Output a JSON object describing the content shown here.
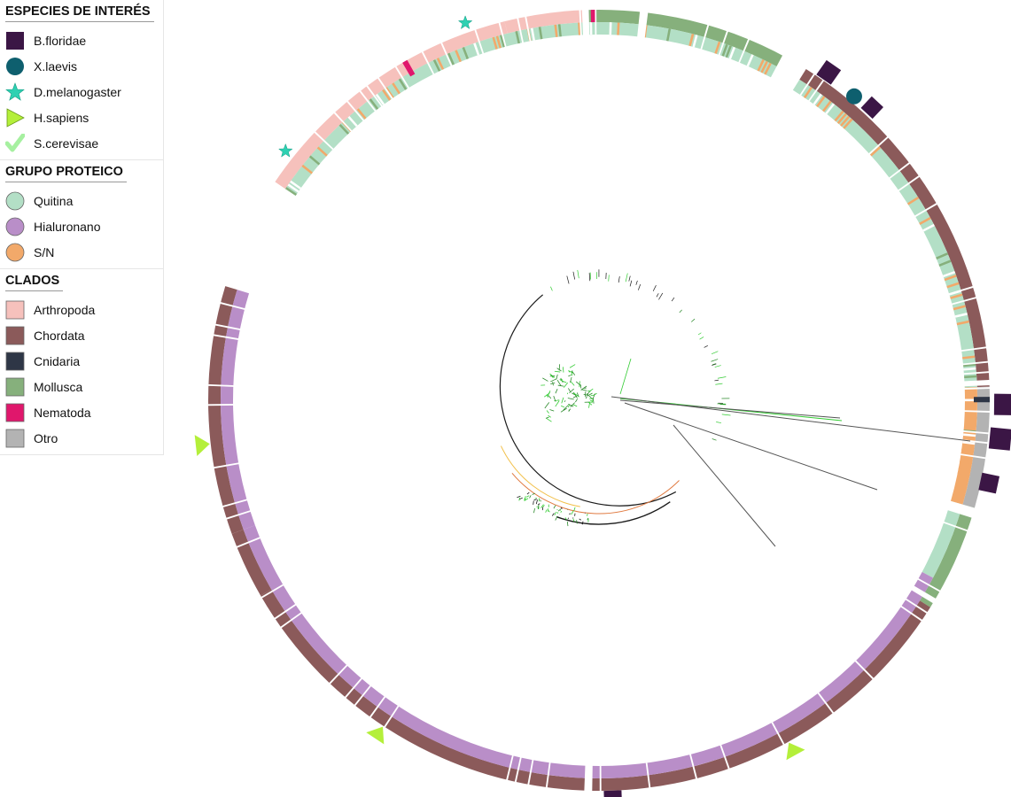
{
  "legend": {
    "species": {
      "title": "ESPECIES DE INTERÉS",
      "items": [
        {
          "label": "B.floridae",
          "icon": "square-marker-icon",
          "color": "#3b1645"
        },
        {
          "label": "X.laevis",
          "icon": "circle-marker-icon",
          "color": "#0e5f6e"
        },
        {
          "label": "D.melanogaster",
          "icon": "star-marker-icon",
          "color": "#2ed1b2"
        },
        {
          "label": "H.sapiens",
          "icon": "triangle-marker-icon",
          "color": "#b4ef3a"
        },
        {
          "label": "S.cerevisae",
          "icon": "check-marker-icon",
          "color": "#a6f0a0"
        }
      ]
    },
    "protein_group": {
      "title": "GRUPO PROTEICO",
      "items": [
        {
          "label": "Quitina",
          "color": "#b3dfc6"
        },
        {
          "label": "Hialuronano",
          "color": "#b98ec8"
        },
        {
          "label": "S/N",
          "color": "#f2a96a"
        }
      ]
    },
    "clades": {
      "title": "CLADOS",
      "items": [
        {
          "label": "Arthropoda",
          "color": "#f6c1bc"
        },
        {
          "label": "Chordata",
          "color": "#8b5a5a"
        },
        {
          "label": "Cnidaria",
          "color": "#2e3646"
        },
        {
          "label": "Mollusca",
          "color": "#86b07c"
        },
        {
          "label": "Nematoda",
          "color": "#e0176c"
        },
        {
          "label": "Otro",
          "color": "#b3b3b3"
        }
      ]
    }
  }
}
